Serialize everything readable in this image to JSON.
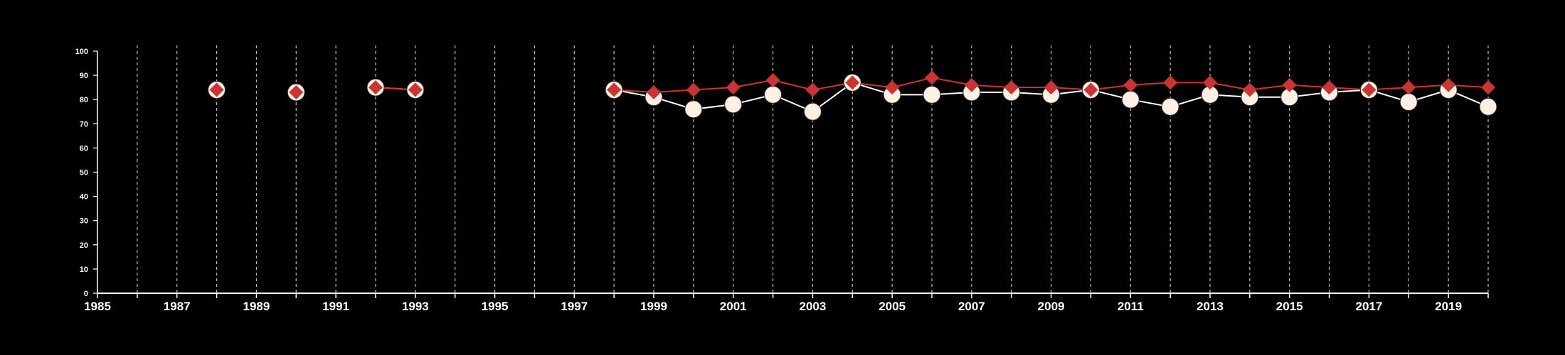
{
  "chart_data": {
    "type": "line",
    "title": "",
    "xlabel": "",
    "ylabel": "",
    "xlim": [
      1985,
      2020
    ],
    "ylim": [
      0,
      100
    ],
    "y_ticks": [
      0,
      10,
      20,
      30,
      40,
      50,
      60,
      70,
      80,
      90,
      100
    ],
    "x_ticks": [
      1985,
      1987,
      1989,
      1991,
      1993,
      1995,
      1997,
      1999,
      2001,
      2003,
      2005,
      2007,
      2009,
      2011,
      2013,
      2015,
      2017,
      2019
    ],
    "vertical_gridlines": "dashed, one per year",
    "series": [
      {
        "marker": "circle",
        "fill": "#fdf1e3",
        "line_color": "#ffffff",
        "values": [
          [
            1988,
            84
          ],
          [
            1990,
            83
          ],
          [
            1992,
            85
          ],
          [
            1993,
            84
          ],
          [
            1998,
            84
          ],
          [
            1999,
            81
          ],
          [
            2000,
            76
          ],
          [
            2001,
            78
          ],
          [
            2002,
            82
          ],
          [
            2003,
            75
          ],
          [
            2004,
            87
          ],
          [
            2005,
            82
          ],
          [
            2006,
            82
          ],
          [
            2007,
            83
          ],
          [
            2008,
            83
          ],
          [
            2009,
            82
          ],
          [
            2010,
            84
          ],
          [
            2011,
            80
          ],
          [
            2012,
            77
          ],
          [
            2013,
            82
          ],
          [
            2014,
            81
          ],
          [
            2015,
            81
          ],
          [
            2016,
            83
          ],
          [
            2017,
            84
          ],
          [
            2018,
            79
          ],
          [
            2019,
            84
          ],
          [
            2020,
            77
          ]
        ]
      },
      {
        "marker": "diamond",
        "fill": "#cc3333",
        "line_color": "#cc3333",
        "values": [
          [
            1988,
            84
          ],
          [
            1990,
            83
          ],
          [
            1992,
            85
          ],
          [
            1993,
            84
          ],
          [
            1998,
            84
          ],
          [
            1999,
            83
          ],
          [
            2000,
            84
          ],
          [
            2001,
            85
          ],
          [
            2002,
            88
          ],
          [
            2003,
            84
          ],
          [
            2004,
            87
          ],
          [
            2005,
            85
          ],
          [
            2006,
            89
          ],
          [
            2007,
            86
          ],
          [
            2008,
            85
          ],
          [
            2009,
            85
          ],
          [
            2010,
            84
          ],
          [
            2011,
            86
          ],
          [
            2012,
            87
          ],
          [
            2013,
            87
          ],
          [
            2014,
            84
          ],
          [
            2015,
            86
          ],
          [
            2016,
            85
          ],
          [
            2017,
            84
          ],
          [
            2018,
            85
          ],
          [
            2019,
            86
          ],
          [
            2020,
            85
          ]
        ]
      }
    ]
  }
}
